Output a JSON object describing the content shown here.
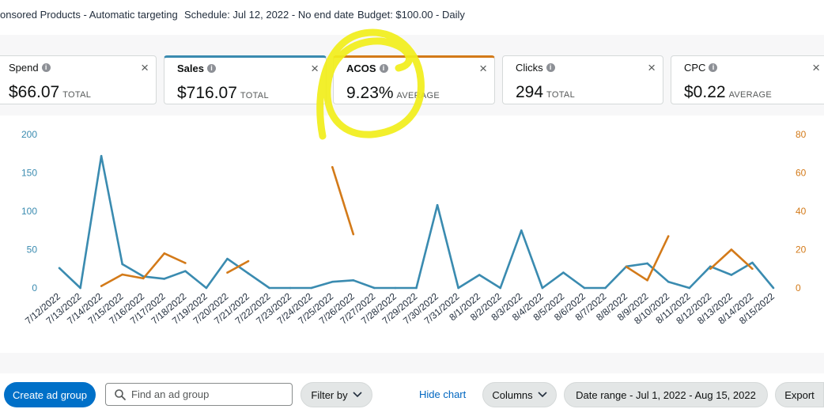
{
  "campaign": {
    "type": "onsored Products - Automatic targeting",
    "schedule": "Schedule: Jul 12, 2022 - No end date",
    "budget": "Budget: $100.00 - Daily"
  },
  "metrics": [
    {
      "label": "Spend",
      "value": "$66.07",
      "unit": "TOTAL",
      "selected": false
    },
    {
      "label": "Sales",
      "value": "$716.07",
      "unit": "TOTAL",
      "selected": true,
      "color": "#3a8bb0"
    },
    {
      "label": "ACOS",
      "value": "9.23%",
      "unit": "AVERAGE",
      "selected": true,
      "color": "#d37a19"
    },
    {
      "label": "Clicks",
      "value": "294",
      "unit": "TOTAL",
      "selected": false
    },
    {
      "label": "CPC",
      "value": "$0.22",
      "unit": "AVERAGE",
      "selected": false
    }
  ],
  "chart_data": {
    "type": "line",
    "x": [
      "7/12/2022",
      "7/13/2022",
      "7/14/2022",
      "7/15/2022",
      "7/16/2022",
      "7/17/2022",
      "7/18/2022",
      "7/19/2022",
      "7/20/2022",
      "7/21/2022",
      "7/22/2022",
      "7/23/2022",
      "7/24/2022",
      "7/25/2022",
      "7/26/2022",
      "7/27/2022",
      "7/28/2022",
      "7/29/2022",
      "7/30/2022",
      "7/31/2022",
      "8/1/2022",
      "8/2/2022",
      "8/3/2022",
      "8/4/2022",
      "8/5/2022",
      "8/6/2022",
      "8/7/2022",
      "8/8/2022",
      "8/9/2022",
      "8/10/2022",
      "8/11/2022",
      "8/12/2022",
      "8/13/2022",
      "8/14/2022",
      "8/15/2022"
    ],
    "series": [
      {
        "name": "Sales",
        "axis": "left",
        "color": "#3a8bb0",
        "values": [
          26,
          0,
          172,
          31,
          15,
          12,
          22,
          0,
          38,
          19,
          0,
          0,
          0,
          8,
          10,
          0,
          0,
          0,
          108,
          0,
          17,
          0,
          75,
          0,
          20,
          0,
          0,
          28,
          32,
          8,
          0,
          28,
          17,
          33,
          0
        ]
      },
      {
        "name": "ACOS",
        "axis": "right",
        "color": "#d37a19",
        "values": [
          null,
          null,
          1,
          7,
          5,
          18,
          13,
          null,
          8,
          14,
          null,
          null,
          null,
          63,
          28,
          null,
          null,
          null,
          null,
          null,
          null,
          null,
          null,
          null,
          null,
          null,
          null,
          11,
          4,
          27,
          null,
          10,
          20,
          10,
          null
        ]
      }
    ],
    "y_left": {
      "ticks": [
        "200",
        "150",
        "100",
        "50",
        "0"
      ],
      "range": [
        0,
        200
      ]
    },
    "y_right": {
      "ticks": [
        "80",
        "60",
        "40",
        "20",
        "0"
      ],
      "range": [
        0,
        80
      ]
    },
    "grid": false
  },
  "toolbar": {
    "create": "Create ad group",
    "search_placeholder": "Find an ad group",
    "filter": "Filter by",
    "hide_chart": "Hide chart",
    "columns": "Columns",
    "date_range": "Date range - Jul 1, 2022 - Aug 15, 2022",
    "export": "Export"
  }
}
